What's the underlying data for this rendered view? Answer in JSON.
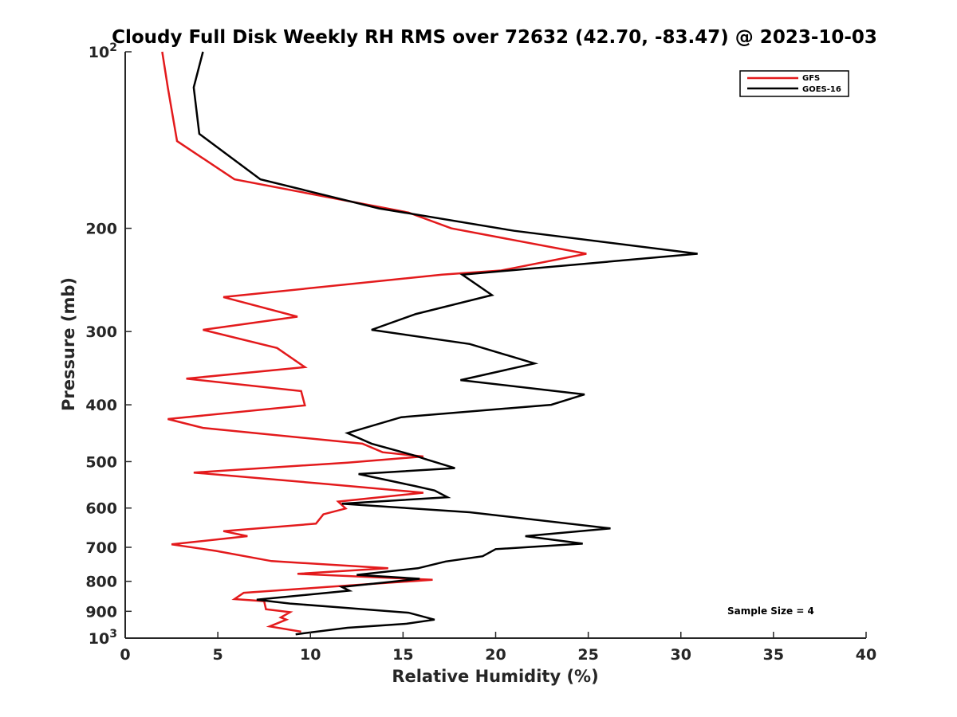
{
  "chart_data": {
    "type": "line",
    "title": "Cloudy Full Disk Weekly RH RMS over 72632 (42.70, -83.47) @ 2023-10-03",
    "xlabel": "Relative Humidity (%)",
    "ylabel": "Pressure (mb)",
    "xlim": [
      0,
      40
    ],
    "ylim": [
      100,
      1000
    ],
    "y_scale": "log",
    "y_reversed": true,
    "grid": false,
    "legend_position": "top-right",
    "annotation": "Sample Size = 4",
    "x_ticks": [
      "0",
      "5",
      "10",
      "15",
      "20",
      "25",
      "30",
      "35",
      "40"
    ],
    "y_ticks": [
      {
        "value": 100,
        "base": "10",
        "exp": "2"
      },
      {
        "value": 200,
        "label": "200"
      },
      {
        "value": 300,
        "label": "300"
      },
      {
        "value": 400,
        "label": "400"
      },
      {
        "value": 500,
        "label": "500"
      },
      {
        "value": 600,
        "label": "600"
      },
      {
        "value": 700,
        "label": "700"
      },
      {
        "value": 800,
        "label": "800"
      },
      {
        "value": 900,
        "label": "900"
      },
      {
        "value": 1000,
        "base": "10",
        "exp": "3"
      }
    ],
    "series": [
      {
        "name": "GFS",
        "color": "#e31a1c",
        "x": [
          2.0,
          2.3,
          2.8,
          5.9,
          15.3,
          17.6,
          24.9,
          20.3,
          17.1,
          5.3,
          9.3,
          4.2,
          8.2,
          9.7,
          3.3,
          9.5,
          9.7,
          2.3,
          4.2,
          12.8,
          13.9,
          16.1,
          12.0,
          3.7,
          10.9,
          16.1,
          11.5,
          11.9,
          10.7,
          10.3,
          5.3,
          6.6,
          2.5,
          4.9,
          7.9,
          14.2,
          9.3,
          16.6,
          10.9,
          6.4,
          5.9,
          7.5,
          7.6,
          8.9,
          8.4,
          8.7,
          7.8,
          9.5
        ],
        "y": [
          100,
          115,
          142,
          165,
          188,
          200,
          221,
          236,
          240,
          262,
          283,
          298,
          320,
          345,
          361,
          379,
          401,
          423,
          438,
          466,
          482,
          490,
          502,
          522,
          546,
          565,
          585,
          601,
          615,
          638,
          657,
          670,
          692,
          710,
          739,
          760,
          777,
          795,
          818,
          837,
          858,
          865,
          893,
          903,
          922,
          930,
          955,
          975
        ]
      },
      {
        "name": "GOES-16",
        "color": "#000000",
        "x": [
          4.2,
          3.7,
          4.0,
          7.3,
          13.7,
          21.0,
          30.9,
          18.2,
          19.8,
          15.7,
          13.3,
          18.6,
          22.1,
          18.1,
          24.8,
          23.0,
          14.9,
          12.0,
          13.3,
          15.7,
          16.2,
          17.8,
          12.6,
          15.6,
          16.7,
          17.4,
          11.7,
          18.6,
          26.2,
          21.6,
          24.7,
          20.0,
          19.3,
          17.3,
          15.8,
          12.5,
          15.9,
          11.7,
          12.1,
          7.1,
          8.9,
          15.3,
          16.7,
          15.2,
          12.0,
          9.2
        ],
        "y": [
          100,
          115,
          138,
          165,
          185,
          202,
          221,
          240,
          260,
          280,
          298,
          315,
          340,
          363,
          384,
          400,
          420,
          447,
          466,
          489,
          495,
          513,
          525,
          550,
          560,
          575,
          590,
          610,
          650,
          670,
          690,
          705,
          725,
          740,
          760,
          780,
          792,
          818,
          830,
          860,
          873,
          905,
          930,
          945,
          960,
          985
        ]
      }
    ]
  }
}
